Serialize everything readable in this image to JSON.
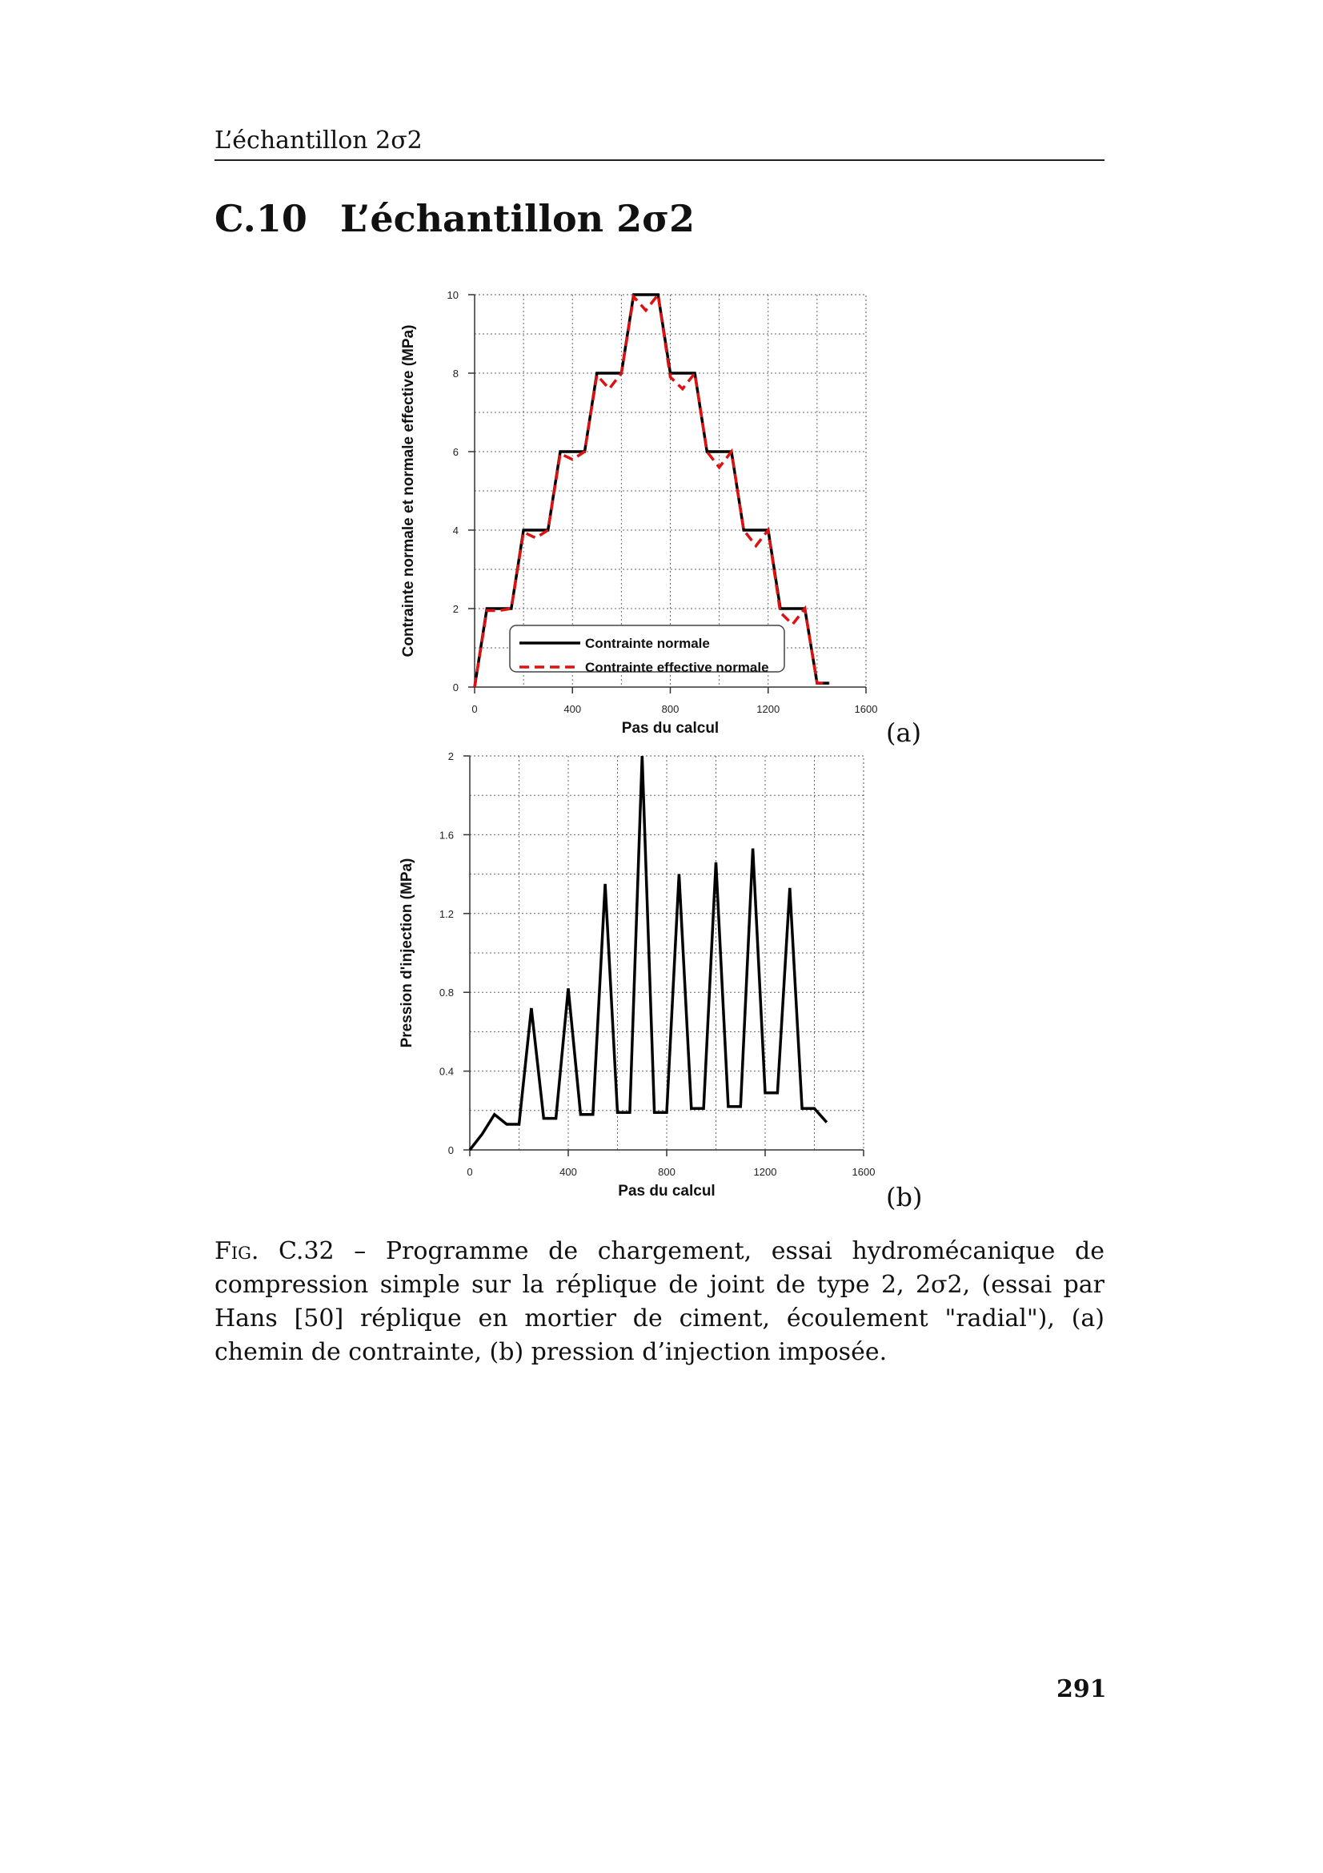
{
  "header": {
    "running_title": "L’échantillon 2σ2"
  },
  "section": {
    "number": "C.10",
    "title": "L’échantillon 2σ2"
  },
  "figure": {
    "panel_a_label": "(a)",
    "panel_b_label": "(b)",
    "caption_prefix": "Fig. C.32",
    "caption_text": " – Programme de chargement, essai hydromécanique de compression simple sur la réplique de joint de type 2, 2σ2, (essai par Hans [50] réplique en mortier de ciment, écoulement \"radial\"), (a) chemin de contrainte, (b) pression d’injection imposée."
  },
  "page_number": "291",
  "chart_data": [
    {
      "type": "line",
      "xlabel": "Pas du calcul",
      "ylabel": "Contrainte normale et normale effective (MPa)",
      "xlim": [
        0,
        1600
      ],
      "ylim": [
        0,
        10
      ],
      "xticks": [
        "0",
        "400",
        "800",
        "1200",
        "1600"
      ],
      "yticks": [
        "0",
        "2",
        "4",
        "6",
        "8",
        "10"
      ],
      "grid": true,
      "legend_position": "bottom-center",
      "series": [
        {
          "name": "Contrainte normale",
          "color": "#000000",
          "style": "solid",
          "x": [
            0,
            50,
            150,
            200,
            300,
            350,
            450,
            500,
            600,
            650,
            750,
            800,
            900,
            950,
            1050,
            1100,
            1200,
            1250,
            1350,
            1400,
            1450
          ],
          "y": [
            0,
            2,
            2,
            4,
            4,
            6,
            6,
            8,
            8,
            10,
            10,
            8,
            8,
            6,
            6,
            4,
            4,
            2,
            2,
            0.1,
            0.1
          ]
        },
        {
          "name": "Contrainte effective normale",
          "color": "#dd1111",
          "style": "dashed",
          "x": [
            0,
            50,
            100,
            150,
            200,
            250,
            300,
            350,
            400,
            450,
            500,
            550,
            600,
            650,
            700,
            750,
            800,
            850,
            900,
            950,
            1000,
            1050,
            1100,
            1150,
            1200,
            1250,
            1300,
            1350,
            1400,
            1450
          ],
          "y": [
            0,
            1.95,
            1.95,
            2,
            3.95,
            3.8,
            4,
            5.95,
            5.8,
            6,
            7.95,
            7.6,
            8,
            9.95,
            9.6,
            10,
            7.9,
            7.6,
            8,
            6,
            5.6,
            6,
            4,
            3.6,
            4,
            1.9,
            1.6,
            2,
            0.1,
            0.1
          ]
        }
      ]
    },
    {
      "type": "line",
      "xlabel": "Pas du calcul",
      "ylabel": "Pression d'injection  (MPa)",
      "xlim": [
        0,
        1600
      ],
      "ylim": [
        0,
        2
      ],
      "xticks": [
        "0",
        "400",
        "800",
        "1200",
        "1600"
      ],
      "yticks": [
        "0",
        "0.4",
        "0.8",
        "1.2",
        "1.6",
        "2"
      ],
      "grid": true,
      "series": [
        {
          "color": "#000000",
          "style": "solid",
          "x": [
            0,
            50,
            100,
            150,
            200,
            250,
            300,
            350,
            400,
            450,
            500,
            550,
            600,
            650,
            700,
            750,
            800,
            850,
            900,
            950,
            1000,
            1050,
            1100,
            1150,
            1200,
            1250,
            1300,
            1350,
            1400,
            1450
          ],
          "y": [
            0,
            0.08,
            0.18,
            0.13,
            0.13,
            0.72,
            0.16,
            0.16,
            0.82,
            0.18,
            0.18,
            1.35,
            0.19,
            0.19,
            2.0,
            0.19,
            0.19,
            1.4,
            0.21,
            0.21,
            1.46,
            0.22,
            0.22,
            1.53,
            0.29,
            0.29,
            1.33,
            0.21,
            0.21,
            0.14
          ]
        }
      ]
    }
  ]
}
